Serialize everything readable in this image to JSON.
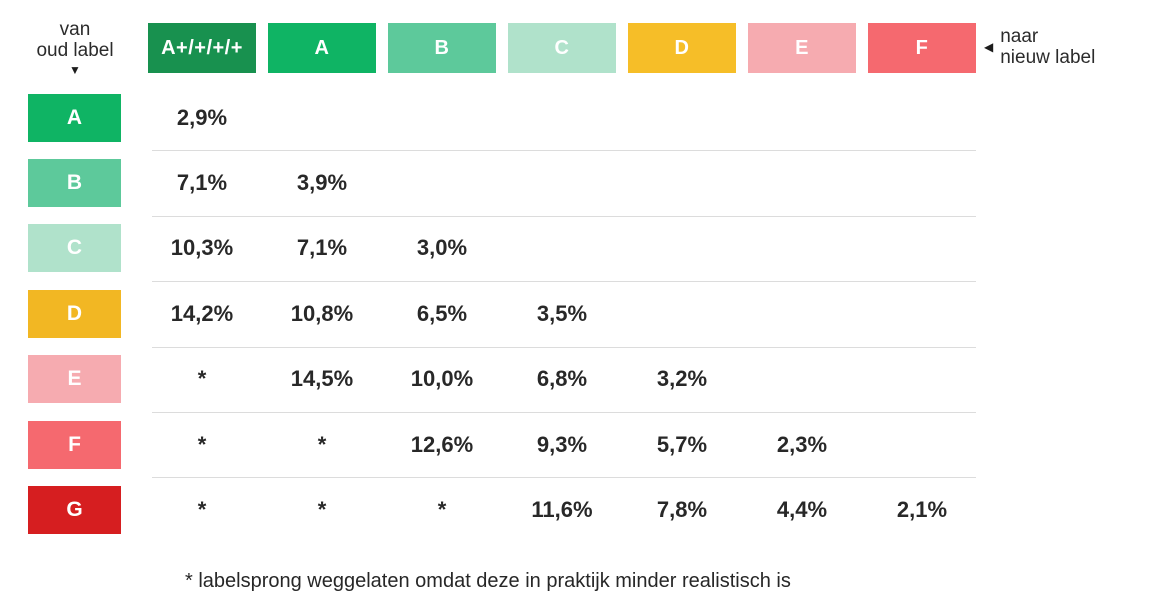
{
  "header": {
    "from_label": {
      "line1": "van",
      "line2": "oud label",
      "arrow": "▼"
    },
    "to_label": {
      "line1": "naar",
      "line2": "nieuw label",
      "arrow": "◀"
    }
  },
  "columns": [
    {
      "label": "A+/+/+/+",
      "color": "#18914f"
    },
    {
      "label": "A",
      "color": "#0fb464"
    },
    {
      "label": "B",
      "color": "#5dc99b"
    },
    {
      "label": "C",
      "color": "#b0e2cb"
    },
    {
      "label": "D",
      "color": "#f6be28"
    },
    {
      "label": "E",
      "color": "#f6abb0"
    },
    {
      "label": "F",
      "color": "#f5696f"
    }
  ],
  "rows": [
    {
      "label": "A",
      "color": "#0fb464",
      "cells": [
        "2,9%",
        "",
        "",
        "",
        "",
        "",
        ""
      ]
    },
    {
      "label": "B",
      "color": "#5dc99b",
      "cells": [
        "7,1%",
        "3,9%",
        "",
        "",
        "",
        "",
        ""
      ]
    },
    {
      "label": "C",
      "color": "#b0e2cb",
      "cells": [
        "10,3%",
        "7,1%",
        "3,0%",
        "",
        "",
        "",
        ""
      ]
    },
    {
      "label": "D",
      "color": "#f2b723",
      "cells": [
        "14,2%",
        "10,8%",
        "6,5%",
        "3,5%",
        "",
        "",
        ""
      ]
    },
    {
      "label": "E",
      "color": "#f6abb0",
      "cells": [
        "*",
        "14,5%",
        "10,0%",
        "6,8%",
        "3,2%",
        "",
        ""
      ]
    },
    {
      "label": "F",
      "color": "#f5696f",
      "cells": [
        "*",
        "*",
        "12,6%",
        "9,3%",
        "5,7%",
        "2,3%",
        ""
      ]
    },
    {
      "label": "G",
      "color": "#d61e20",
      "cells": [
        "*",
        "*",
        "*",
        "11,6%",
        "7,8%",
        "4,4%",
        "2,1%"
      ]
    }
  ],
  "footnote": "* labelsprong weggelaten omdat deze in praktijk minder realistisch is",
  "colors": {
    "background": "#ffffff",
    "divider": "#dcdcdc",
    "badge_text": "#ffffff",
    "value_text": "#282828"
  },
  "chart_data": {
    "type": "table",
    "title": "",
    "row_axis_label": "van oud label",
    "col_axis_label": "naar nieuw label",
    "columns": [
      "A+/+/+/+",
      "A",
      "B",
      "C",
      "D",
      "E",
      "F"
    ],
    "rows": [
      "A",
      "B",
      "C",
      "D",
      "E",
      "F",
      "G"
    ],
    "matrix": [
      [
        "2,9%",
        "",
        "",
        "",
        "",
        "",
        ""
      ],
      [
        "7,1%",
        "3,9%",
        "",
        "",
        "",
        "",
        ""
      ],
      [
        "10,3%",
        "7,1%",
        "3,0%",
        "",
        "",
        "",
        ""
      ],
      [
        "14,2%",
        "10,8%",
        "6,5%",
        "3,5%",
        "",
        "",
        ""
      ],
      [
        "*",
        "14,5%",
        "10,0%",
        "6,8%",
        "3,2%",
        "",
        ""
      ],
      [
        "*",
        "*",
        "12,6%",
        "9,3%",
        "5,7%",
        "2,3%",
        ""
      ],
      [
        "*",
        "*",
        "*",
        "11,6%",
        "7,8%",
        "4,4%",
        "2,1%"
      ]
    ],
    "footnote": "* labelsprong weggelaten omdat deze in praktijk minder realistisch is",
    "legend_position": "none",
    "grid": "row-dividers"
  }
}
